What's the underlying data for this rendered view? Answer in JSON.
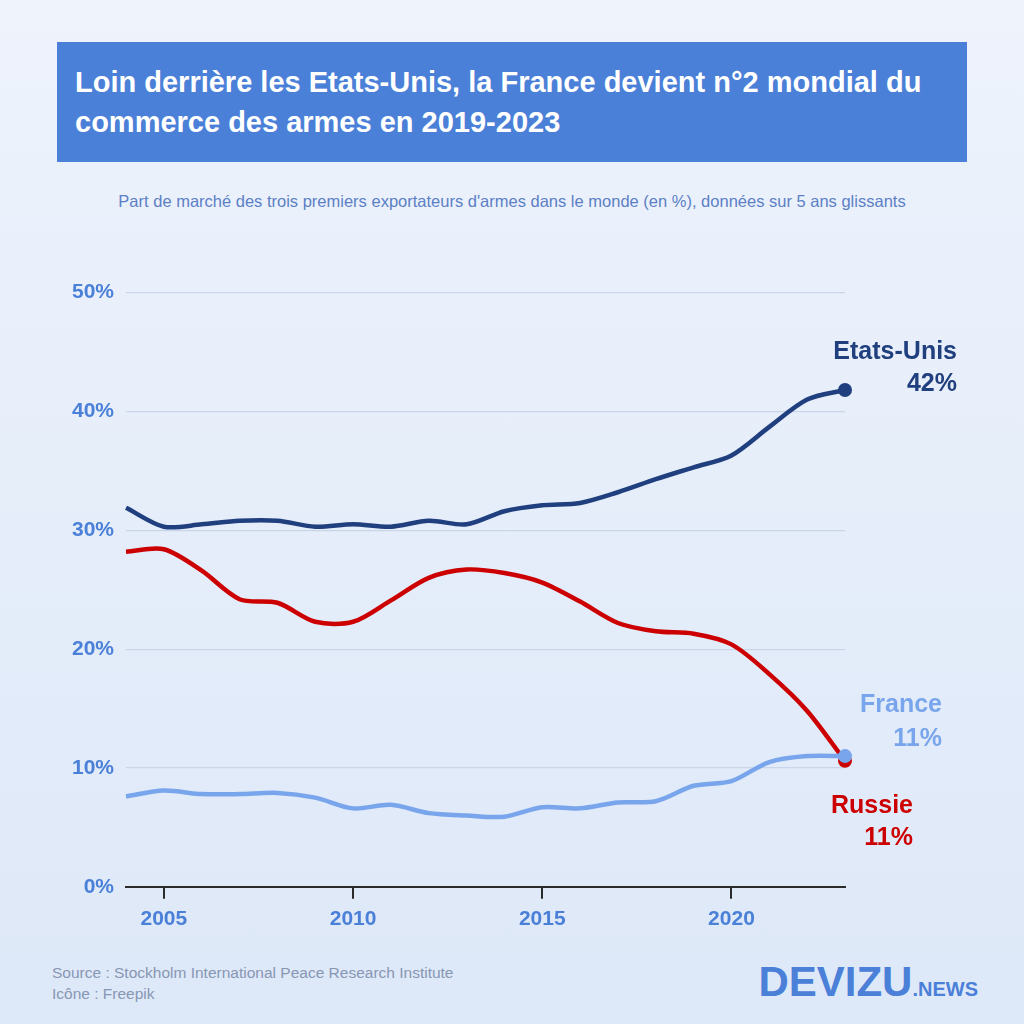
{
  "chart_data": {
    "type": "line",
    "title": "Loin derrière les Etats-Unis, la France devient n°2 mondial du commerce des armes en 2019-2023",
    "subtitle": "Part de marché des trois premiers exportateurs d'armes dans le monde (en %), données sur 5 ans glissants",
    "source": "Source : Stockholm International Peace Research Institute",
    "credit": "Icône : Freepik",
    "brand": [
      "DEVIZU",
      ".NEWS"
    ],
    "x": [
      2004,
      2005,
      2006,
      2007,
      2008,
      2009,
      2010,
      2011,
      2012,
      2013,
      2014,
      2015,
      2016,
      2017,
      2018,
      2019,
      2020,
      2021,
      2022,
      2023
    ],
    "series": [
      {
        "name": "Etats-Unis",
        "color": "#1f3f7e",
        "values": [
          31.9,
          30.3,
          30.5,
          30.8,
          30.8,
          30.3,
          30.5,
          30.3,
          30.8,
          30.5,
          31.6,
          32.1,
          32.3,
          33.2,
          34.3,
          35.3,
          36.3,
          38.7,
          41.0,
          41.8
        ],
        "value_labels": [
          null,
          null,
          null,
          null,
          null,
          null,
          null,
          null,
          null,
          null,
          null,
          null,
          null,
          null,
          null,
          null,
          null,
          null,
          null,
          "42%"
        ]
      },
      {
        "name": "France",
        "color": "#78a5eb",
        "values": [
          7.6,
          8.1,
          7.8,
          7.8,
          7.9,
          7.5,
          6.6,
          6.9,
          6.2,
          6.0,
          5.9,
          6.7,
          6.6,
          7.1,
          7.2,
          8.5,
          8.9,
          10.5,
          11.0,
          11.0
        ],
        "value_labels": [
          null,
          null,
          null,
          null,
          null,
          null,
          null,
          null,
          null,
          null,
          null,
          null,
          null,
          null,
          null,
          null,
          null,
          null,
          null,
          "11%"
        ]
      },
      {
        "name": "Russie",
        "color": "#cc0000",
        "values": [
          28.2,
          28.4,
          26.6,
          24.2,
          23.9,
          22.3,
          22.3,
          24.1,
          26.0,
          26.7,
          26.4,
          25.6,
          24.0,
          22.2,
          21.5,
          21.3,
          20.4,
          17.9,
          14.8,
          10.6
        ],
        "value_labels": [
          null,
          null,
          null,
          null,
          null,
          null,
          null,
          null,
          null,
          null,
          null,
          null,
          null,
          null,
          null,
          null,
          null,
          null,
          null,
          "11%"
        ]
      }
    ],
    "xlim": [
      2004,
      2023
    ],
    "xticks": [
      2005,
      2010,
      2015,
      2020
    ],
    "ylim": [
      0,
      50
    ],
    "yticks": [
      {
        "value": 0,
        "label": "0%"
      },
      {
        "value": 10,
        "label": "10%"
      },
      {
        "value": 20,
        "label": "20%"
      },
      {
        "value": 30,
        "label": "30%"
      },
      {
        "value": 40,
        "label": "40%"
      },
      {
        "value": 50,
        "label": "50%"
      }
    ],
    "grid": true
  }
}
